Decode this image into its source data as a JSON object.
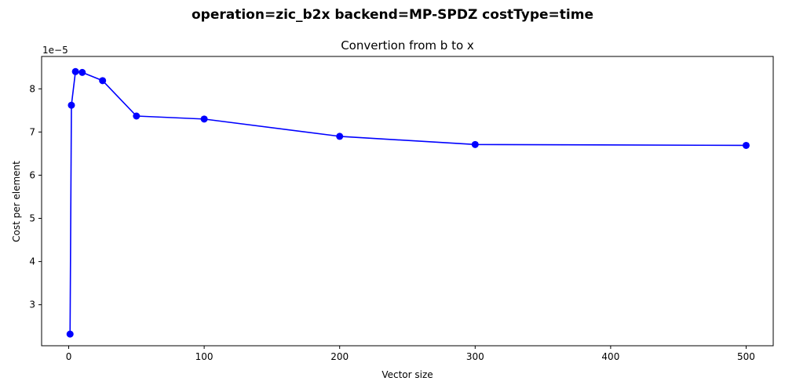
{
  "figure": {
    "suptitle": "operation=zic_b2x backend=MP-SPDZ costType=time"
  },
  "chart_data": {
    "type": "line",
    "title": "Convertion from b to x",
    "xlabel": "Vector size",
    "ylabel": "Cost per element",
    "y_offset_text": "1e−5",
    "xlim": [
      -20,
      520
    ],
    "ylim": [
      2.05,
      8.75
    ],
    "x_ticks": [
      0,
      100,
      200,
      300,
      400,
      500
    ],
    "x_tick_labels": [
      "0",
      "100",
      "200",
      "300",
      "400",
      "500"
    ],
    "y_ticks": [
      3,
      4,
      5,
      6,
      7,
      8
    ],
    "y_tick_labels": [
      "3",
      "4",
      "5",
      "6",
      "7",
      "8"
    ],
    "y_scale_factor": "1e-5",
    "grid": false,
    "color": "#0000ff",
    "marker": "circle",
    "series": [
      {
        "x": [
          1,
          2,
          5,
          10,
          25,
          50,
          100,
          200,
          300,
          500
        ],
        "y": [
          2.32,
          7.62,
          8.4,
          8.38,
          8.19,
          7.37,
          7.3,
          6.9,
          6.71,
          6.69
        ]
      }
    ]
  }
}
